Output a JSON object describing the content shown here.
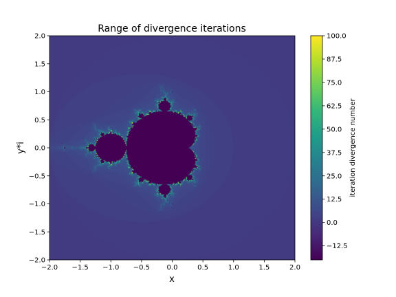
{
  "chart_data": {
    "type": "heatmap",
    "title": "Range of divergence iterations",
    "xlabel": "x",
    "ylabel": "y*i",
    "xlim": [
      -2.0,
      2.0
    ],
    "ylim": [
      -2.0,
      2.0
    ],
    "x_ticks": [
      -2.0,
      -1.5,
      -1.0,
      -0.5,
      0.0,
      0.5,
      1.0,
      1.5,
      2.0
    ],
    "y_ticks": [
      -2.0,
      -1.5,
      -1.0,
      -0.5,
      0.0,
      0.5,
      1.0,
      1.5,
      2.0
    ],
    "x_tick_labels": [
      "−2.0",
      "−1.5",
      "−1.0",
      "−0.5",
      "0.0",
      "0.5",
      "1.0",
      "1.5",
      "2.0"
    ],
    "y_tick_labels": [
      "−2.0",
      "−1.5",
      "−1.0",
      "−0.5",
      "0.0",
      "0.5",
      "1.0",
      "1.5",
      "2.0"
    ],
    "colormap": "viridis",
    "colorbar": {
      "label": "iteration divergence number",
      "range": [
        -20,
        100
      ],
      "ticks": [
        -12.5,
        0.0,
        12.5,
        25.0,
        37.5,
        50.0,
        62.5,
        75.0,
        87.5,
        100.0
      ],
      "tick_labels": [
        "−12.5",
        "0.0",
        "12.5",
        "25.0",
        "37.5",
        "50.0",
        "62.5",
        "75.0",
        "87.5",
        "100.0"
      ]
    },
    "field": {
      "kind": "mandelbrot escape-time",
      "max_iterations": 100,
      "inside_set_value": -20
    },
    "grid": false
  },
  "colors": {
    "viridis_stops": [
      "#440154",
      "#482878",
      "#3e4989",
      "#31688e",
      "#26828e",
      "#1f9e89",
      "#35b779",
      "#6ece58",
      "#b5de2b",
      "#fde725"
    ]
  }
}
